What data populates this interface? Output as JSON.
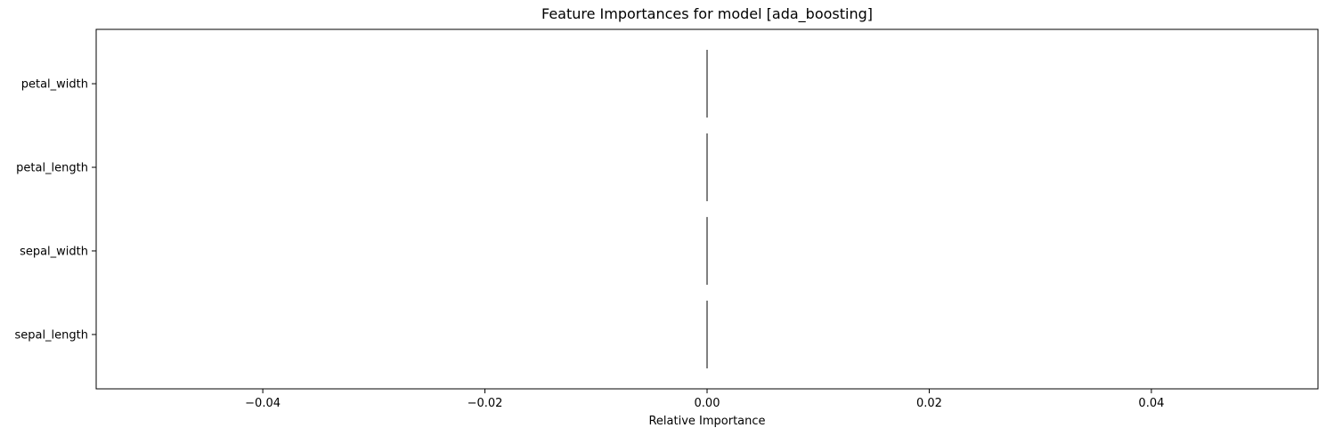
{
  "chart_data": {
    "type": "bar",
    "orientation": "horizontal",
    "title": "Feature Importances for model [ada_boosting]",
    "xlabel": "Relative Importance",
    "ylabel": "",
    "categories": [
      "sepal_length",
      "sepal_width",
      "petal_length",
      "petal_width"
    ],
    "values": [
      0.0,
      0.0,
      0.0,
      0.0
    ],
    "xlim": [
      -0.055,
      0.055
    ],
    "xticks": [
      -0.04,
      -0.02,
      0.0,
      0.02,
      0.04
    ],
    "xtick_labels": [
      "−0.04",
      "−0.02",
      "0.00",
      "0.02",
      "0.04"
    ],
    "grid": false,
    "legend": "none",
    "bar_color": "#1f77b4",
    "edge_color": "#000000"
  }
}
